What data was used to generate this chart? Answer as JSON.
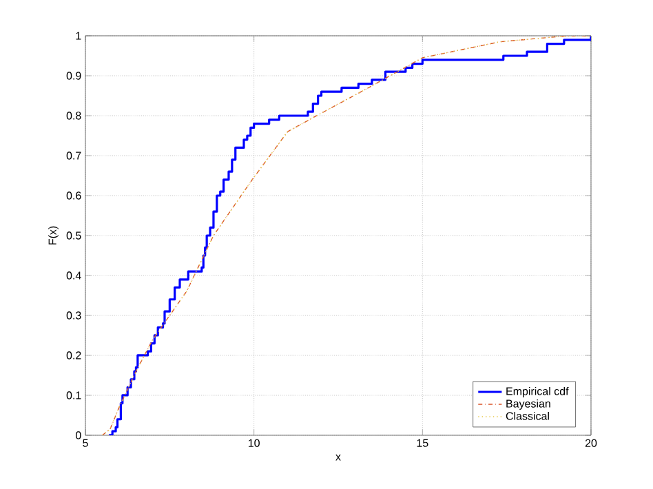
{
  "chart_data": {
    "type": "line",
    "xlabel": "x",
    "ylabel": "F(x)",
    "xlim": [
      5,
      20
    ],
    "ylim": [
      0,
      1
    ],
    "xticks": [
      5,
      10,
      15,
      20
    ],
    "yticks": [
      0,
      0.1,
      0.2,
      0.3,
      0.4,
      0.5,
      0.6,
      0.7,
      0.8,
      0.9,
      1
    ],
    "grid": true,
    "legend": "bottom right",
    "marker": "none",
    "series": [
      {
        "name": "Empirical cdf",
        "type": "step",
        "color": "#0000ff",
        "line_style": "solid",
        "x": [
          5.7,
          5.8,
          5.9,
          5.95,
          6.05,
          6.1,
          6.25,
          6.35,
          6.45,
          6.5,
          6.55,
          6.85,
          6.95,
          7.05,
          7.15,
          7.3,
          7.35,
          7.5,
          7.65,
          7.8,
          8.05,
          8.45,
          8.5,
          8.55,
          8.6,
          8.7,
          8.8,
          8.9,
          9.0,
          9.1,
          9.25,
          9.35,
          9.45,
          9.55,
          9.7,
          9.8,
          9.9,
          10.0,
          10.2,
          10.45,
          10.75,
          11.6,
          11.75,
          11.9,
          12.0,
          12.6,
          13.1,
          13.5,
          13.9,
          14.5,
          14.7,
          15.0,
          17.3,
          17.4,
          18.1,
          18.7,
          19.2,
          20.0
        ],
        "values": [
          0,
          0.01,
          0.02,
          0.04,
          0.08,
          0.1,
          0.12,
          0.14,
          0.16,
          0.17,
          0.2,
          0.21,
          0.23,
          0.25,
          0.27,
          0.28,
          0.31,
          0.34,
          0.37,
          0.39,
          0.41,
          0.42,
          0.45,
          0.47,
          0.5,
          0.52,
          0.56,
          0.6,
          0.61,
          0.64,
          0.66,
          0.69,
          0.72,
          0.72,
          0.74,
          0.75,
          0.77,
          0.78,
          0.78,
          0.79,
          0.8,
          0.81,
          0.83,
          0.85,
          0.86,
          0.87,
          0.88,
          0.89,
          0.91,
          0.92,
          0.93,
          0.94,
          0.94,
          0.95,
          0.96,
          0.98,
          0.99,
          1.0
        ]
      },
      {
        "name": "Bayesian",
        "color": "#d9542a",
        "line_style": "dashdot",
        "x": [
          5.5,
          5.73,
          6,
          6.5,
          7,
          7.5,
          8,
          8.8,
          9.95,
          11,
          11.86,
          13.4,
          15,
          17.3,
          19.3,
          20
        ],
        "values": [
          0,
          0.015,
          0.07,
          0.16,
          0.24,
          0.3,
          0.36,
          0.5,
          0.64,
          0.76,
          0.8,
          0.87,
          0.945,
          0.985,
          1.0,
          1.0
        ]
      },
      {
        "name": "Classical",
        "color": "#e8c84a",
        "line_style": "dotted",
        "x": [
          5.5,
          5.73,
          6,
          6.5,
          7,
          7.5,
          8,
          8.8,
          9.95,
          11,
          11.86,
          13.4,
          15,
          17.3,
          19.3,
          20
        ],
        "values": [
          0,
          0.015,
          0.07,
          0.16,
          0.24,
          0.3,
          0.36,
          0.5,
          0.64,
          0.76,
          0.8,
          0.87,
          0.945,
          0.985,
          1.0,
          1.0
        ]
      }
    ]
  }
}
